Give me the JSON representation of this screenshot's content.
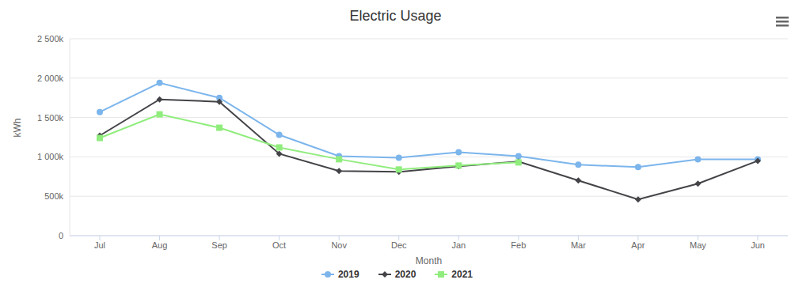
{
  "chart_data": {
    "type": "line",
    "title": "Electric Usage",
    "x_label": "Month",
    "y_label": "kWh",
    "categories": [
      "Jul",
      "Aug",
      "Sep",
      "Oct",
      "Nov",
      "Dec",
      "Jan",
      "Feb",
      "Mar",
      "Apr",
      "May",
      "Jun"
    ],
    "series": [
      {
        "name": "2019",
        "color": "#7cb5ec",
        "marker": "circle",
        "values": [
          1570000,
          1940000,
          1750000,
          1280000,
          1010000,
          990000,
          1060000,
          1010000,
          900000,
          870000,
          970000,
          970000
        ]
      },
      {
        "name": "2020",
        "color": "#434348",
        "marker": "diamond",
        "values": [
          1270000,
          1730000,
          1700000,
          1040000,
          820000,
          810000,
          880000,
          940000,
          700000,
          460000,
          660000,
          950000
        ]
      },
      {
        "name": "2021",
        "color": "#90ed7d",
        "marker": "square",
        "values": [
          1240000,
          1540000,
          1370000,
          1120000,
          970000,
          840000,
          890000,
          930000,
          null,
          null,
          null,
          null
        ]
      }
    ],
    "ylim": [
      0,
      2500000
    ],
    "yticks": [
      0,
      {
        "value": 500000,
        "label": "500k"
      },
      {
        "value": 1000000,
        "label": "1 000k"
      },
      {
        "value": 1500000,
        "label": "1 500k"
      },
      {
        "value": 2000000,
        "label": "2 000k"
      },
      {
        "value": 2500000,
        "label": "2 500k"
      }
    ],
    "grid": true,
    "legend": "bottom"
  }
}
